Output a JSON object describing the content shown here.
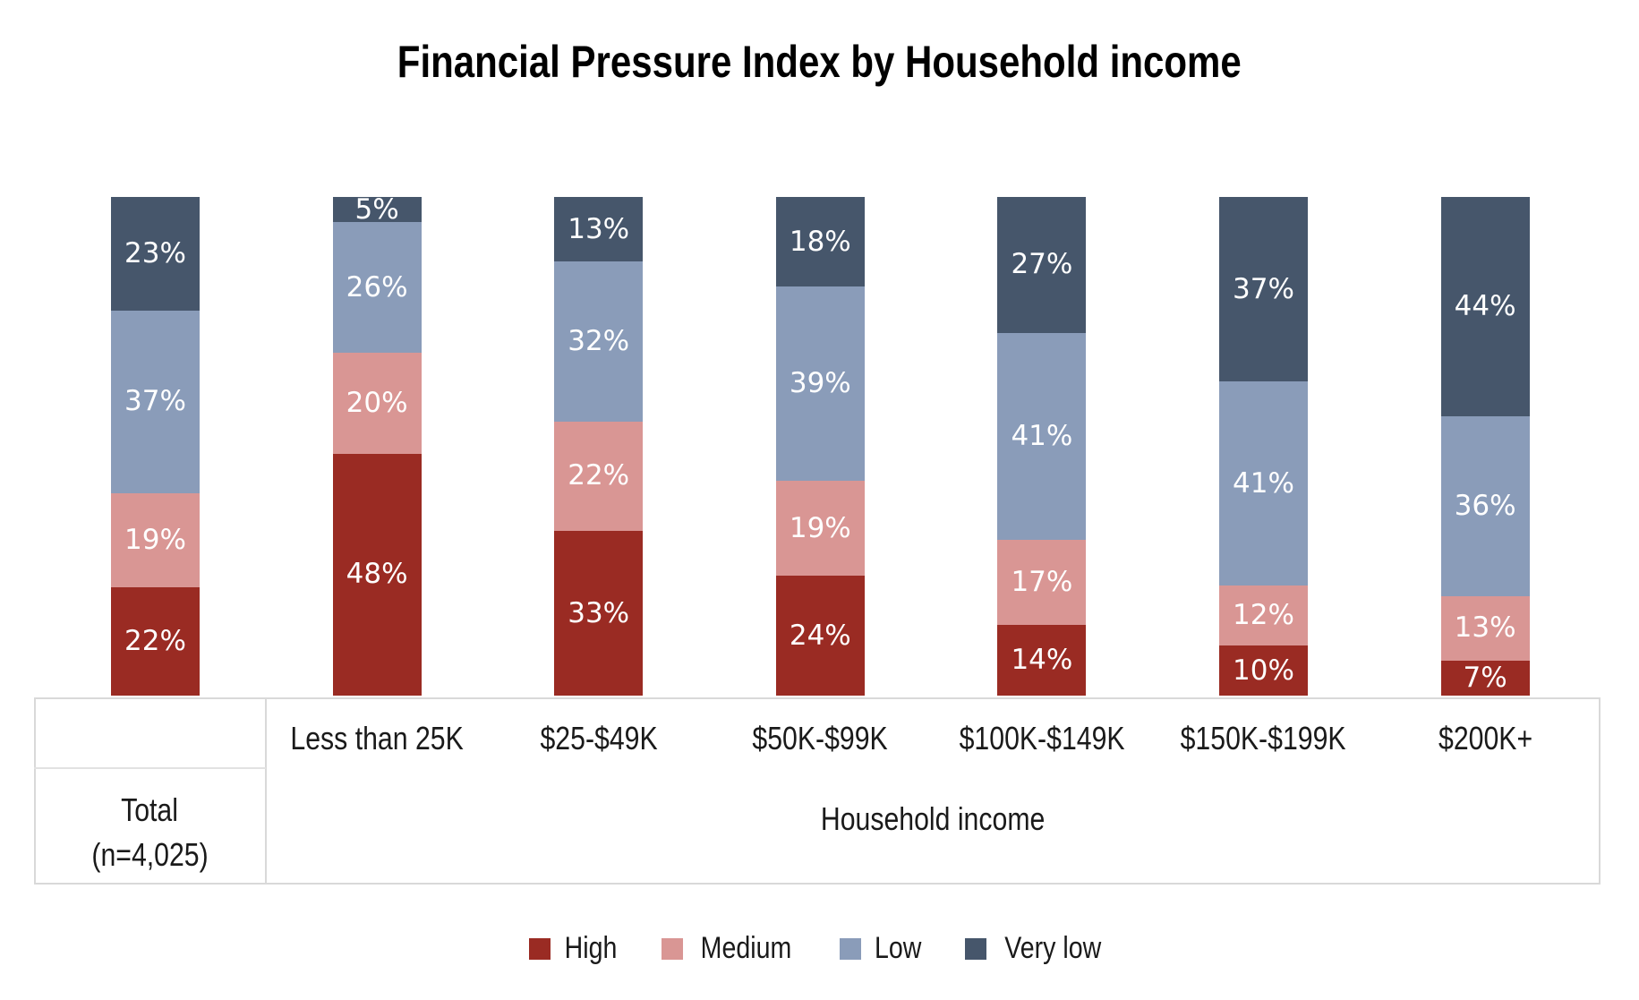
{
  "title": "Financial Pressure Index by Household income",
  "axis": {
    "total_line1": "Total",
    "total_line2": "(n=4,025)",
    "group_label": "Household income"
  },
  "chart_data": {
    "type": "bar",
    "subtype": "stacked-100-percent-column",
    "title": "Financial Pressure Index by Household income",
    "xlabel": "Household income",
    "value_suffix": "%",
    "grid": false,
    "legend_position": "bottom",
    "categories": [
      "Total (n=4,025)",
      "Less than 25K",
      "$25-$49K",
      "$50K-$99K",
      "$100K-$149K",
      "$150K-$199K",
      "$200K+"
    ],
    "x_axis_labels": [
      "Less than 25K",
      "$25-$49K",
      "$50K-$99K",
      "$100K-$149K",
      "$150K-$199K",
      "$200K+"
    ],
    "series": [
      {
        "name": "High",
        "color": "#9a2b23",
        "values": [
          22,
          48,
          33,
          24,
          14,
          10,
          7
        ]
      },
      {
        "name": "Medium",
        "color": "#d99694",
        "values": [
          19,
          20,
          22,
          19,
          17,
          12,
          13
        ]
      },
      {
        "name": "Low",
        "color": "#8a9cb9",
        "values": [
          37,
          26,
          32,
          39,
          41,
          41,
          36
        ]
      },
      {
        "name": "Very low",
        "color": "#46566b",
        "values": [
          23,
          5,
          13,
          18,
          27,
          37,
          44
        ]
      }
    ]
  },
  "colors": {
    "high": "#9a2b23",
    "medium": "#d99694",
    "low": "#8a9cb9",
    "very_low": "#46566b",
    "axis_border": "#d9d9d9",
    "label_text": "#ffffff"
  }
}
